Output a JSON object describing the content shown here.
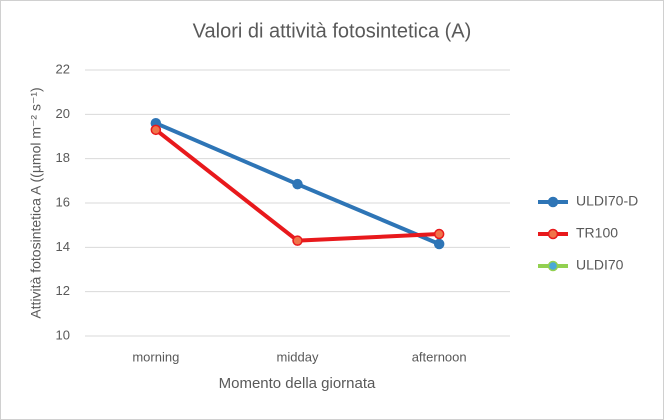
{
  "chart_data": {
    "type": "line",
    "title": "Valori di attività fotosintetica (A)",
    "x_label": "Momento della giornata",
    "y_label": "Attività fotosintetica A ((µmol m⁻² s⁻¹)",
    "categories": [
      "morning",
      "midday",
      "afternoon"
    ],
    "series": [
      {
        "name": "ULDI70-D",
        "color": "#2e75b6",
        "marker_color": "#2e75b6",
        "values": [
          19.6,
          16.85,
          14.15
        ]
      },
      {
        "name": "TR100",
        "color": "#e8191c",
        "marker_color": "#f0744a",
        "values": [
          19.3,
          14.3,
          14.6
        ]
      },
      {
        "name": "ULDI70",
        "color": "#92d050",
        "marker_color": "#4aa8d8",
        "values": [
          null,
          null,
          null
        ]
      }
    ],
    "ylim": [
      10,
      22
    ],
    "yticks": [
      10,
      12,
      14,
      16,
      18,
      20,
      22
    ],
    "grid": true,
    "legend": "right"
  }
}
